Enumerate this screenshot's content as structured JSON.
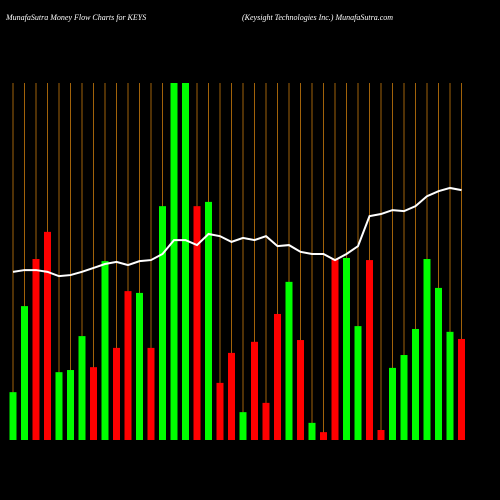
{
  "chart_data": {
    "type": "bar",
    "title": "MunafaSutra  Money Flow  Charts for KEYS",
    "subtitle": "(Keysight Technologies Inc.) MunafaSutra.com",
    "values": [
      13.4,
      37.5,
      50.7,
      58.3,
      19.0,
      19.6,
      29.1,
      20.4,
      50.1,
      25.8,
      41.7,
      41.2,
      25.8,
      65.5,
      100,
      100,
      65.5,
      66.7,
      16.0,
      24.4,
      7.8,
      27.5,
      10.4,
      35.3,
      44.3,
      28.0,
      4.8,
      2.2,
      50.7,
      51.0,
      31.9,
      50.4,
      2.8,
      20.2,
      23.8,
      31.1,
      50.7,
      42.6,
      30.3,
      28.3
    ],
    "colors": [
      "#00ff00",
      "#00ff00",
      "#ff0000",
      "#ff0000",
      "#00ff00",
      "#00ff00",
      "#00ff00",
      "#ff0000",
      "#00ff00",
      "#ff0000",
      "#ff0000",
      "#00ff00",
      "#ff0000",
      "#00ff00",
      "#00ff00",
      "#00ff00",
      "#ff0000",
      "#00ff00",
      "#ff0000",
      "#ff0000",
      "#00ff00",
      "#ff0000",
      "#ff0000",
      "#ff0000",
      "#00ff00",
      "#ff0000",
      "#00ff00",
      "#ff0000",
      "#ff0000",
      "#00ff00",
      "#00ff00",
      "#ff0000",
      "#ff0000",
      "#00ff00",
      "#00ff00",
      "#00ff00",
      "#00ff00",
      "#00ff00",
      "#00ff00",
      "#ff0000"
    ],
    "line": {
      "color": "#ffffff",
      "values": [
        47.1,
        47.6,
        47.6,
        47.1,
        45.9,
        46.2,
        47.1,
        48.2,
        49.3,
        49.9,
        49.0,
        50.1,
        50.4,
        52.1,
        56.0,
        56.0,
        54.6,
        57.7,
        57.1,
        55.5,
        56.6,
        56.0,
        57.1,
        54.3,
        54.6,
        52.7,
        52.1,
        52.1,
        50.4,
        52.1,
        54.3,
        62.7,
        63.3,
        64.4,
        64.1,
        65.5,
        68.3,
        69.7,
        70.6,
        70.0
      ]
    },
    "ylim": [
      0,
      100
    ],
    "grid": true,
    "grid_color": "#a0620a",
    "background": "#000000"
  }
}
